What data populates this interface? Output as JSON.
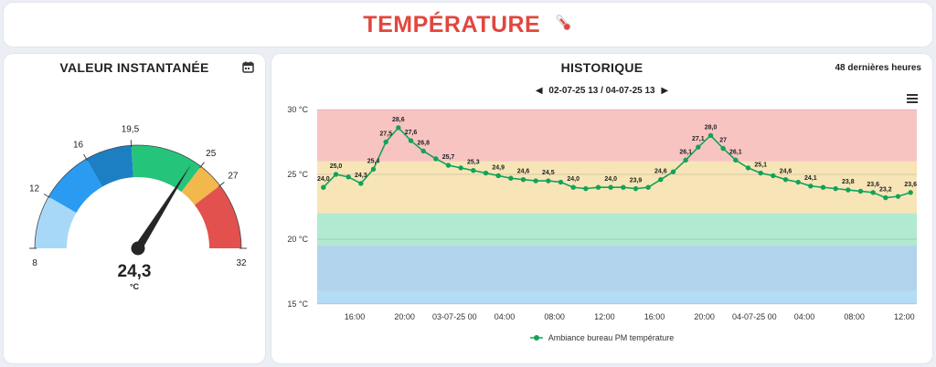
{
  "header": {
    "title": "TEMPÉRATURE",
    "icon": "thermometer-icon",
    "color": "#e2463f"
  },
  "gauge": {
    "title": "VALEUR INSTANTANÉE",
    "icon": "calendar-icon",
    "value": "24,3",
    "unit": "°C",
    "numeric_value": 24.3,
    "min": 8,
    "max": 32,
    "bands": [
      {
        "from": 8,
        "to": 12,
        "color": "#a8d8f8"
      },
      {
        "from": 12,
        "to": 16,
        "color": "#2a9bf0"
      },
      {
        "from": 16,
        "to": 19.5,
        "color": "#1c7fc4"
      },
      {
        "from": 19.5,
        "to": 25,
        "color": "#25c47b"
      },
      {
        "from": 25,
        "to": 27,
        "color": "#f2b84b"
      },
      {
        "from": 27,
        "to": 32,
        "color": "#e2514d"
      }
    ],
    "tick_labels": [
      "8",
      "12",
      "16",
      "19,5",
      "25",
      "27",
      "32"
    ],
    "tick_values": [
      8,
      12,
      16,
      19.5,
      25,
      27,
      32
    ]
  },
  "history": {
    "title": "HISTORIQUE",
    "period": "48 dernières heures",
    "date_range": "02-07-25 13 / 04-07-25 13",
    "menu_icon": "hamburger-menu-icon",
    "prev_icon": "caret-left-icon",
    "next_icon": "caret-right-icon",
    "legend_label": "Ambiance bureau PM température"
  },
  "chart_data": {
    "type": "line",
    "title": "",
    "xlabel": "",
    "ylabel": "",
    "ylim": [
      15,
      30
    ],
    "y_ticks": [
      "15 °C",
      "20 °C",
      "25 °C",
      "30 °C"
    ],
    "y_tick_values": [
      15,
      20,
      25,
      30
    ],
    "x_ticks": [
      "16:00",
      "20:00",
      "03-07-25 00",
      "04:00",
      "08:00",
      "12:00",
      "16:00",
      "20:00",
      "04-07-25 00",
      "04:00",
      "08:00",
      "12:00"
    ],
    "x_tick_hours": [
      16,
      20,
      24,
      28,
      32,
      36,
      40,
      44,
      48,
      52,
      56,
      60
    ],
    "x_range_hours": [
      13,
      61
    ],
    "grid": true,
    "legend_position": "bottom",
    "bands": [
      {
        "from": 15,
        "to": 16,
        "color": "#b3dcf7"
      },
      {
        "from": 16,
        "to": 19.5,
        "color": "#b1d3ec"
      },
      {
        "from": 19.5,
        "to": 22,
        "color": "#b2ead1"
      },
      {
        "from": 22,
        "to": 26,
        "color": "#f7e5b7"
      },
      {
        "from": 26,
        "to": 30,
        "color": "#f8c4c2"
      }
    ],
    "series": [
      {
        "name": "Ambiance bureau PM température",
        "color": "#12a25a",
        "hours": [
          13.5,
          14.5,
          15.5,
          16.5,
          17.5,
          18.5,
          19.5,
          20.5,
          21.5,
          22.5,
          23.5,
          24.5,
          25.5,
          26.5,
          27.5,
          28.5,
          29.5,
          30.5,
          31.5,
          32.5,
          33.5,
          34.5,
          35.5,
          36.5,
          37.5,
          38.5,
          39.5,
          40.5,
          41.5,
          42.5,
          43.5,
          44.5,
          45.5,
          46.5,
          47.5,
          48.5,
          49.5,
          50.5,
          51.5,
          52.5,
          53.5,
          54.5,
          55.5,
          56.5,
          57.5,
          58.5,
          59.5,
          60.5
        ],
        "values": [
          24.0,
          25.0,
          24.8,
          24.3,
          25.4,
          27.5,
          28.6,
          27.6,
          26.8,
          26.2,
          25.7,
          25.5,
          25.3,
          25.1,
          24.9,
          24.7,
          24.6,
          24.5,
          24.5,
          24.4,
          24.0,
          23.9,
          24.0,
          24.0,
          24.0,
          23.9,
          24.0,
          24.6,
          25.2,
          26.1,
          27.1,
          28.0,
          27.0,
          26.1,
          25.5,
          25.1,
          24.9,
          24.6,
          24.4,
          24.1,
          24.0,
          23.9,
          23.8,
          23.7,
          23.6,
          23.2,
          23.3,
          23.6
        ],
        "labels": [
          {
            "i": 0,
            "t": "24,0"
          },
          {
            "i": 1,
            "t": "25,0"
          },
          {
            "i": 3,
            "t": "24,3"
          },
          {
            "i": 4,
            "t": "25,4"
          },
          {
            "i": 5,
            "t": "27,5"
          },
          {
            "i": 6,
            "t": "28,6"
          },
          {
            "i": 7,
            "t": "27,6"
          },
          {
            "i": 8,
            "t": "26,8"
          },
          {
            "i": 10,
            "t": "25,7"
          },
          {
            "i": 12,
            "t": "25,3"
          },
          {
            "i": 14,
            "t": "24,9"
          },
          {
            "i": 16,
            "t": "24,6"
          },
          {
            "i": 18,
            "t": "24,5"
          },
          {
            "i": 20,
            "t": "24,0"
          },
          {
            "i": 23,
            "t": "24,0"
          },
          {
            "i": 25,
            "t": "23,9"
          },
          {
            "i": 27,
            "t": "24,6"
          },
          {
            "i": 29,
            "t": "26,1"
          },
          {
            "i": 30,
            "t": "27,1"
          },
          {
            "i": 31,
            "t": "28,0"
          },
          {
            "i": 32,
            "t": "27"
          },
          {
            "i": 33,
            "t": "26,1"
          },
          {
            "i": 35,
            "t": "25,1"
          },
          {
            "i": 37,
            "t": "24,6"
          },
          {
            "i": 39,
            "t": "24,1"
          },
          {
            "i": 42,
            "t": "23,8"
          },
          {
            "i": 44,
            "t": "23,6"
          },
          {
            "i": 45,
            "t": "23,2"
          },
          {
            "i": 47,
            "t": "23,6"
          }
        ]
      }
    ]
  }
}
